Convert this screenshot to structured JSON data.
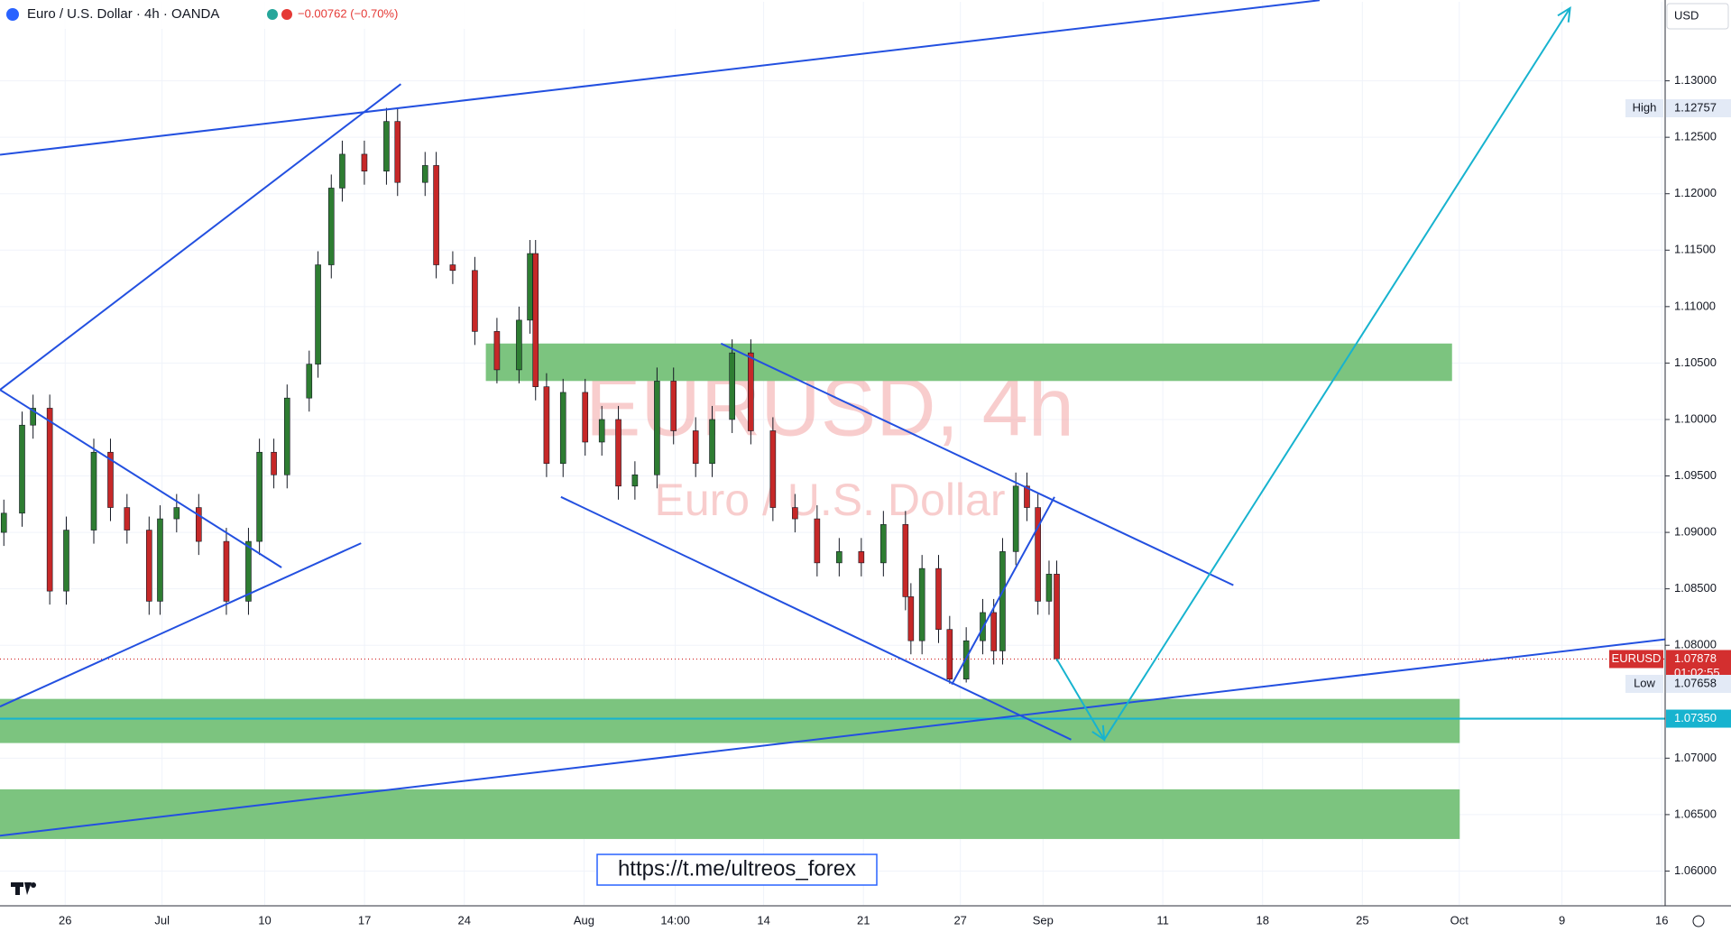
{
  "header": {
    "symbol": "Euro / U.S. Dollar · 4h · OANDA",
    "change": "−0.00762 (−0.70%)",
    "currency": "USD"
  },
  "watermark": {
    "title": "EURUSD, 4h",
    "subtitle": "Euro / U.S. Dollar"
  },
  "link": "https://t.me/ultreos_forex",
  "chart_data": {
    "type": "candlestick",
    "up_color": "#2e7d32",
    "down_color": "#c62828",
    "x": [
      -4.3,
      -3.02,
      -2.25,
      -1.08,
      0.08,
      2.01,
      3.18,
      4.34,
      5.89,
      6.66,
      7.82,
      9.37,
      11.31,
      12.86,
      13.63,
      14.64,
      15.57,
      17.12,
      17.74,
      18.67,
      19.44,
      20.99,
      22.54,
      23.32,
      25.25,
      26.03,
      27.19,
      28.74,
      30.29,
      31.84,
      32.61,
      33.0,
      33.77,
      34.93,
      36.48,
      37.65,
      38.81,
      39.97,
      41.52,
      42.68,
      44.23,
      45.39,
      46.79,
      48.1,
      49.65,
      51.2,
      52.75,
      54.3,
      55.85,
      57.4,
      58.95,
      59.33,
      60.11,
      61.27,
      62.05,
      63.21,
      64.37,
      65.14,
      65.76,
      66.69,
      67.47,
      68.24,
      69.02,
      69.56
    ],
    "open": [
      1.09,
      1.0917,
      1.0995,
      1.101,
      1.0848,
      1.0902,
      1.0971,
      1.0922,
      1.0902,
      1.0839,
      1.0912,
      1.0922,
      1.0892,
      1.0839,
      1.0892,
      1.0971,
      1.0951,
      1.1019,
      1.1049,
      1.1137,
      1.1205,
      1.1235,
      1.122,
      1.1264,
      1.121,
      1.1225,
      1.1137,
      1.1132,
      1.1078,
      1.1044,
      1.1088,
      1.1147,
      1.1029,
      1.0961,
      1.1024,
      1.098,
      1.1,
      1.0941,
      1.0951,
      1.1034,
      1.099,
      1.0961,
      1.1,
      1.1059,
      1.099,
      1.0922,
      1.0912,
      1.0873,
      1.0883,
      1.0873,
      1.0907,
      1.0843,
      1.0804,
      1.0868,
      1.0814,
      1.077,
      1.0804,
      1.0829,
      1.0795,
      1.0883,
      1.0941,
      1.0922,
      1.0839,
      1.0863
    ],
    "high": [
      1.0929,
      1.1007,
      1.1022,
      1.1022,
      1.0914,
      1.0983,
      1.0983,
      1.0934,
      1.0914,
      1.0924,
      1.0934,
      1.0934,
      1.0904,
      1.0904,
      1.0983,
      1.0983,
      1.1031,
      1.1061,
      1.1149,
      1.1217,
      1.1247,
      1.1247,
      1.1276,
      1.1276,
      1.1237,
      1.1237,
      1.1149,
      1.1144,
      1.109,
      1.11,
      1.1159,
      1.1159,
      1.1041,
      1.1036,
      1.1036,
      1.1012,
      1.1012,
      1.0963,
      1.1046,
      1.1046,
      1.1002,
      1.1012,
      1.1071,
      1.1071,
      1.1002,
      1.0934,
      1.0924,
      1.0895,
      1.0895,
      1.0919,
      1.0919,
      1.0855,
      1.088,
      1.088,
      1.0826,
      1.0816,
      1.0841,
      1.0841,
      1.0895,
      1.0953,
      1.0953,
      1.0934,
      1.0875,
      1.0875
    ],
    "low": [
      1.0888,
      1.0905,
      1.0983,
      1.0836,
      1.0836,
      1.089,
      1.091,
      1.089,
      1.0827,
      1.0827,
      1.09,
      1.088,
      1.0827,
      1.0827,
      1.088,
      1.0939,
      1.0939,
      1.1007,
      1.1037,
      1.1125,
      1.1193,
      1.1208,
      1.1208,
      1.1198,
      1.1198,
      1.1125,
      1.112,
      1.1066,
      1.1032,
      1.1032,
      1.1076,
      1.1017,
      1.0949,
      1.0949,
      1.0968,
      1.0968,
      1.0929,
      1.0929,
      1.0939,
      1.0978,
      1.0949,
      1.0949,
      1.0988,
      1.0978,
      1.091,
      1.09,
      1.0861,
      1.0861,
      1.0861,
      1.0861,
      1.0831,
      1.0792,
      1.0792,
      1.0802,
      1.0766,
      1.0767,
      1.0792,
      1.0783,
      1.0783,
      1.0871,
      1.091,
      1.0827,
      1.0827,
      1.0786
    ],
    "close": [
      1.0917,
      1.0995,
      1.101,
      1.0848,
      1.0902,
      1.0971,
      1.0922,
      1.0902,
      1.0839,
      1.0912,
      1.0922,
      1.0892,
      1.0839,
      1.0892,
      1.0971,
      1.0951,
      1.1019,
      1.1049,
      1.1137,
      1.1205,
      1.1235,
      1.122,
      1.1264,
      1.121,
      1.1225,
      1.1137,
      1.1132,
      1.1078,
      1.1044,
      1.1088,
      1.1147,
      1.1029,
      1.0961,
      1.1024,
      1.098,
      1.1,
      1.0941,
      1.0951,
      1.1034,
      1.099,
      1.0961,
      1.1,
      1.1059,
      1.099,
      1.0922,
      1.0912,
      1.0873,
      1.0883,
      1.0873,
      1.0907,
      1.0843,
      1.0804,
      1.0868,
      1.0814,
      1.077,
      1.0804,
      1.0829,
      1.0795,
      1.0883,
      1.0941,
      1.0922,
      1.0839,
      1.0863,
      1.0788
    ],
    "xlim": [
      -4.57,
      112.24
    ],
    "xticks": [
      {
        "value": 0,
        "label": "26"
      },
      {
        "value": 6.8,
        "label": "Jul"
      },
      {
        "value": 14,
        "label": "10"
      },
      {
        "value": 21,
        "label": "17"
      },
      {
        "value": 28,
        "label": "24"
      },
      {
        "value": 36.4,
        "label": "Aug"
      },
      {
        "value": 42.8,
        "label": "14:00"
      },
      {
        "value": 49,
        "label": "14"
      },
      {
        "value": 56,
        "label": "21"
      },
      {
        "value": 62.8,
        "label": "27"
      },
      {
        "value": 68.6,
        "label": "Sep"
      },
      {
        "value": 77,
        "label": "11"
      },
      {
        "value": 84,
        "label": "18"
      },
      {
        "value": 91,
        "label": "25"
      },
      {
        "value": 97.8,
        "label": "Oct"
      },
      {
        "value": 105,
        "label": "9"
      },
      {
        "value": 112,
        "label": "16"
      }
    ],
    "ylim": [
      1.057,
      1.137
    ],
    "yticks": [
      {
        "value": 1.06,
        "label": "1.06000"
      },
      {
        "value": 1.065,
        "label": "1.06500"
      },
      {
        "value": 1.07,
        "label": "1.07000"
      },
      {
        "value": 1.08,
        "label": "1.08000"
      },
      {
        "value": 1.085,
        "label": "1.08500"
      },
      {
        "value": 1.09,
        "label": "1.09000"
      },
      {
        "value": 1.095,
        "label": "1.09500"
      },
      {
        "value": 1.1,
        "label": "1.10000"
      },
      {
        "value": 1.105,
        "label": "1.10500"
      },
      {
        "value": 1.11,
        "label": "1.11000"
      },
      {
        "value": 1.115,
        "label": "1.11500"
      },
      {
        "value": 1.12,
        "label": "1.12000"
      },
      {
        "value": 1.125,
        "label": "1.12500"
      },
      {
        "value": 1.13,
        "label": "1.13000"
      }
    ],
    "zones": [
      {
        "x": [
          29.51,
          97.29
        ],
        "y": [
          1.10341,
          1.10673
        ],
        "color": "#7cc47f"
      },
      {
        "x": [
          -4.57,
          97.83
        ],
        "y": [
          1.07134,
          1.07525
        ],
        "color": "#7cc47f"
      },
      {
        "x": [
          -4.57,
          97.83
        ],
        "y": [
          1.06284,
          1.06724
        ],
        "color": "#7cc47f"
      }
    ],
    "trendlines": [
      {
        "x": [
          -4.57,
          88.0
        ],
        "y": [
          1.12345,
          1.13714
        ],
        "color": "#2350e0"
      },
      {
        "x": [
          -4.57,
          23.55
        ],
        "y": [
          1.10263,
          1.12971
        ],
        "color": "#2350e0"
      },
      {
        "x": [
          -4.57,
          15.18
        ],
        "y": [
          1.10263,
          1.08689
        ],
        "color": "#2350e0"
      },
      {
        "x": [
          -4.57,
          20.76
        ],
        "y": [
          1.07457,
          1.08904
        ],
        "color": "#2350e0"
      },
      {
        "x": [
          -4.57,
          112.24
        ],
        "y": [
          1.06313,
          1.08053
        ],
        "color": "#2350e0"
      },
      {
        "x": [
          34.78,
          70.57
        ],
        "y": [
          1.09314,
          1.07164
        ],
        "color": "#2350e0"
      },
      {
        "x": [
          46.01,
          81.95
        ],
        "y": [
          1.10673,
          1.08532
        ],
        "color": "#2350e0"
      },
      {
        "x": [
          62.2,
          69.4
        ],
        "y": [
          1.07653,
          1.09314
        ],
        "color": "#2350e0"
      }
    ],
    "arrow": {
      "x": [
        69.56,
        72.89,
        105.57
      ],
      "y": [
        1.07878,
        1.07164,
        1.13645
      ],
      "color": "#17b3cf"
    },
    "hline": {
      "value": 1.0735,
      "color": "#17b3cf"
    },
    "last_price": {
      "value": 1.07878,
      "color": "#d32f2f"
    },
    "price_labels": [
      {
        "name": "High",
        "value": 1.12757,
        "label": "1.12757"
      },
      {
        "name": "EURUSD",
        "value": 1.07878,
        "label": "1.07878",
        "countdown": "01:02:55"
      },
      {
        "name": "Low",
        "value": 1.07658,
        "label": "1.07658"
      },
      {
        "value": 1.0735,
        "label": "1.07350"
      }
    ]
  }
}
